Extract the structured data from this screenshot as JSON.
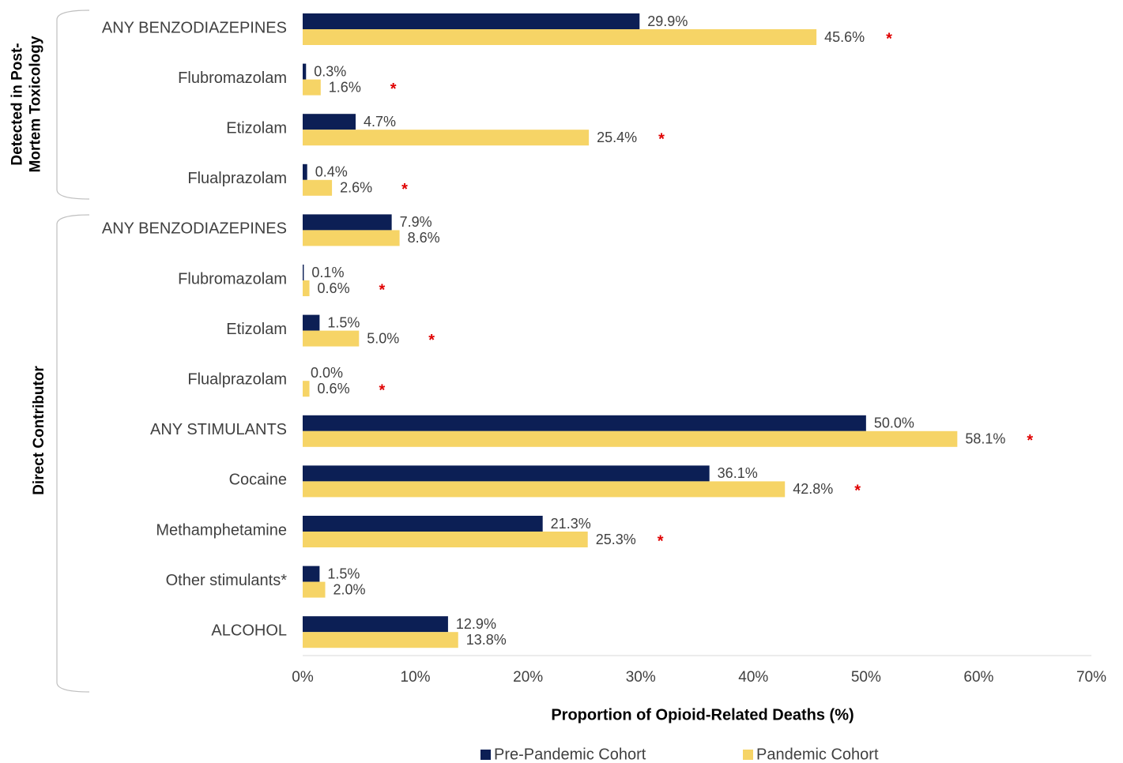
{
  "chart_data": {
    "type": "hbar",
    "x_label": "Proportion of Opioid-Related Deaths (%)",
    "categories": [
      "ANY BENZODIAZEPINES",
      "Flubromazolam",
      "Etizolam",
      "Flualprazolam",
      "ANY BENZODIAZEPINES",
      "Flubromazolam",
      "Etizolam",
      "Flualprazolam",
      "ANY STIMULANTS",
      "Cocaine",
      "Methamphetamine",
      "Other stimulants*",
      "ALCOHOL"
    ],
    "groups": [
      {
        "lines": [
          "Detected in Post-",
          "Mortem Toxicology"
        ]
      },
      {
        "lines": [
          "Direct Contributor"
        ]
      }
    ],
    "series": [
      {
        "name": "Pre-Pandemic Cohort",
        "color": "#0c1f55",
        "values": [
          29.9,
          0.3,
          4.7,
          0.4,
          7.9,
          0.1,
          1.5,
          0.0,
          50.0,
          36.1,
          21.3,
          1.5,
          12.9
        ],
        "value_labels": [
          "29.9%",
          "0.3%",
          "4.7%",
          "0.4%",
          "7.9%",
          "0.1%",
          "1.5%",
          "0.0%",
          "50.0%",
          "36.1%",
          "21.3%",
          "1.5%",
          "12.9%"
        ]
      },
      {
        "name": "Pandemic Cohort",
        "color": "#f6d466",
        "values": [
          45.6,
          1.6,
          25.4,
          2.6,
          8.6,
          0.6,
          5.0,
          0.6,
          58.1,
          42.8,
          25.3,
          2.0,
          13.8
        ],
        "value_labels": [
          "45.6%",
          "1.6%",
          "25.4%",
          "2.6%",
          "8.6%",
          "0.6%",
          "5.0%",
          "0.6%",
          "58.1%",
          "42.8%",
          "25.3%",
          "2.0%",
          "13.8%"
        ],
        "significance": [
          "*",
          "*",
          "*",
          "*",
          null,
          "*",
          "*",
          "*",
          "*",
          "*",
          "*",
          null,
          null
        ]
      }
    ],
    "xlim": [
      0,
      70
    ],
    "xticks": [
      {
        "value": 0,
        "label": "0%"
      },
      {
        "value": 10,
        "label": "10%"
      },
      {
        "value": 20,
        "label": "20%"
      },
      {
        "value": 30,
        "label": "30%"
      },
      {
        "value": 40,
        "label": "40%"
      },
      {
        "value": 50,
        "label": "50%"
      },
      {
        "value": 60,
        "label": "60%"
      },
      {
        "value": 70,
        "label": "70%"
      }
    ],
    "grid": false,
    "legend": "bottom"
  }
}
